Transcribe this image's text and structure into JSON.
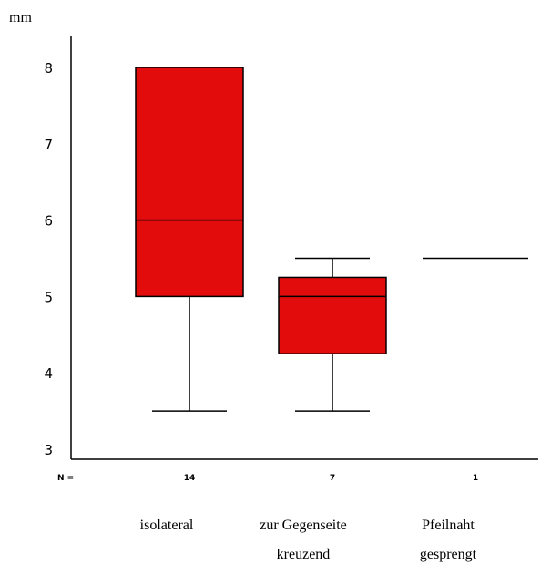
{
  "chart_data": {
    "type": "box",
    "ylabel": "mm",
    "ylim": [
      2.9,
      8.4
    ],
    "yticks": [
      3,
      4,
      5,
      6,
      7,
      8
    ],
    "grid": false,
    "n_label": "N =",
    "colors": {
      "box_fill": "#e30c0c",
      "line": "#000000"
    },
    "categories": [
      {
        "label_lines": [
          "isolateral"
        ],
        "n": "14",
        "min": 3.5,
        "q1": 5.0,
        "median": 6.0,
        "q3": 8.0,
        "max": 8.0
      },
      {
        "label_lines": [
          "zur Gegenseite",
          "kreuzend"
        ],
        "n": "7",
        "min": 3.5,
        "q1": 4.25,
        "median": 5.0,
        "q3": 5.25,
        "max": 5.5
      },
      {
        "label_lines": [
          "Pfeilnaht",
          "gesprengt"
        ],
        "n": "1",
        "min": 5.5,
        "q1": 5.5,
        "median": 5.5,
        "q3": 5.5,
        "max": 5.5
      }
    ]
  }
}
